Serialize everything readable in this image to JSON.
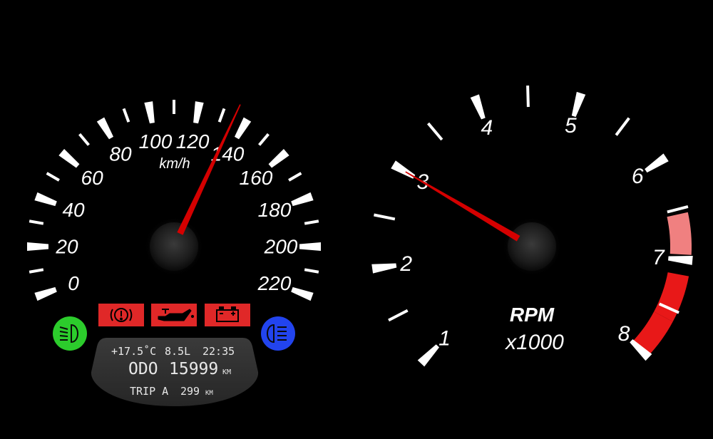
{
  "speedometer": {
    "unit": "km/h",
    "labels": [
      "0",
      "20",
      "40",
      "60",
      "80",
      "100",
      "120",
      "140",
      "160",
      "180",
      "200",
      "220"
    ],
    "min": 0,
    "max": 220,
    "needle_value": 135
  },
  "tachometer": {
    "title": "RPM",
    "multiplier": "x1000",
    "labels": [
      "1",
      "2",
      "3",
      "4",
      "5",
      "6",
      "7",
      "8"
    ],
    "min": 1,
    "max": 8,
    "needle_value": 3,
    "redline_start": 6.5
  },
  "warning_lights": [
    {
      "name": "brake-warning-icon",
      "color": "#e02020"
    },
    {
      "name": "oil-pressure-icon",
      "color": "#e02020"
    },
    {
      "name": "battery-warning-icon",
      "color": "#e02020"
    }
  ],
  "indicators": {
    "low_beam": {
      "name": "low-beam-icon",
      "color": "#22cc22"
    },
    "high_beam": {
      "name": "high-beam-icon",
      "color": "#2244ee"
    }
  },
  "info_display": {
    "temperature": "+17.5˚C",
    "fuel": "8.5L",
    "time": "22:35",
    "odo_label": "ODO",
    "odo_value": "15999",
    "odo_unit": "KM",
    "trip_label": "TRIP A",
    "trip_value": "299",
    "trip_unit": "KM"
  },
  "colors": {
    "needle": "#d40000",
    "redline": "#e01010",
    "background": "#000000"
  }
}
